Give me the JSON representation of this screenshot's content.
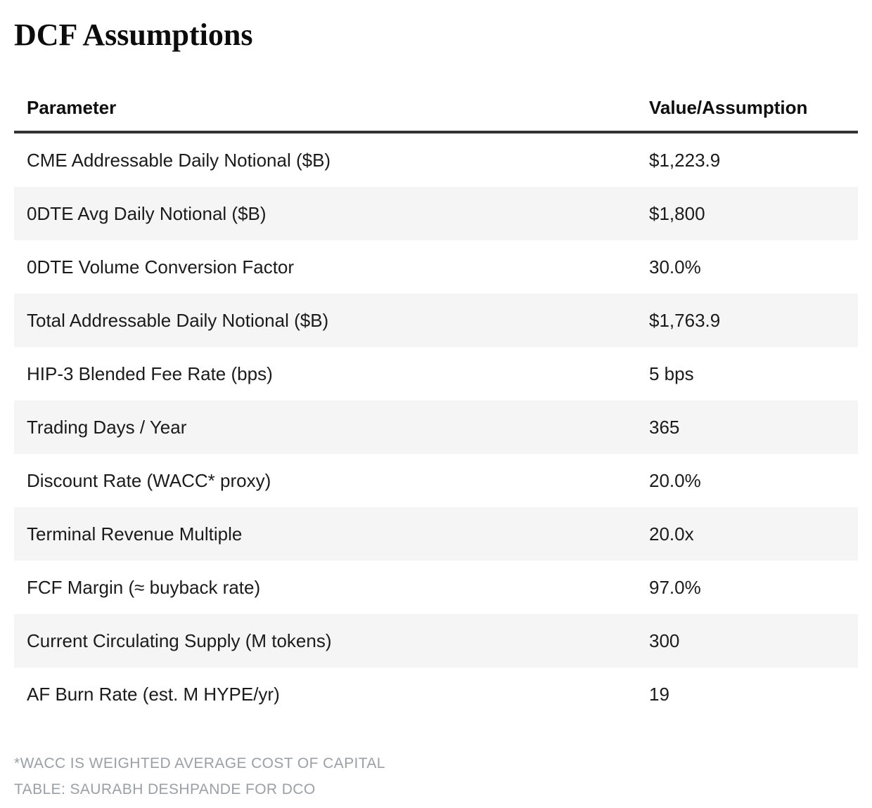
{
  "chart_data": {
    "type": "table",
    "title": "DCF Assumptions",
    "columns": [
      "Parameter",
      "Value/Assumption"
    ],
    "rows": [
      {
        "parameter": "CME Addressable Daily Notional ($B)",
        "value": "$1,223.9"
      },
      {
        "parameter": "0DTE Avg Daily Notional ($B)",
        "value": "$1,800"
      },
      {
        "parameter": "0DTE Volume Conversion Factor",
        "value": "30.0%"
      },
      {
        "parameter": "Total Addressable Daily Notional ($B)",
        "value": "$1,763.9"
      },
      {
        "parameter": "HIP-3 Blended Fee Rate (bps)",
        "value": "5 bps"
      },
      {
        "parameter": "Trading Days / Year",
        "value": "365"
      },
      {
        "parameter": "Discount Rate (WACC* proxy)",
        "value": "20.0%"
      },
      {
        "parameter": "Terminal Revenue Multiple",
        "value": "20.0x"
      },
      {
        "parameter": "FCF Margin (≈ buyback rate)",
        "value": "97.0%"
      },
      {
        "parameter": "Current Circulating Supply (M tokens)",
        "value": "300"
      },
      {
        "parameter": "AF Burn Rate (est. M HYPE/yr)",
        "value": "19"
      }
    ],
    "footnotes": [
      "*WACC IS WEIGHTED AVERAGE COST OF CAPITAL",
      "TABLE: SAURABH DESHPANDE FOR DCO"
    ],
    "layout_hints": {
      "stripe_color": "#f5f5f5",
      "header_rule_color": "#333333",
      "text_color": "#1b1b1b",
      "footnote_color": "#9aa0a5",
      "grid": "off",
      "value_column_align": "left"
    }
  }
}
